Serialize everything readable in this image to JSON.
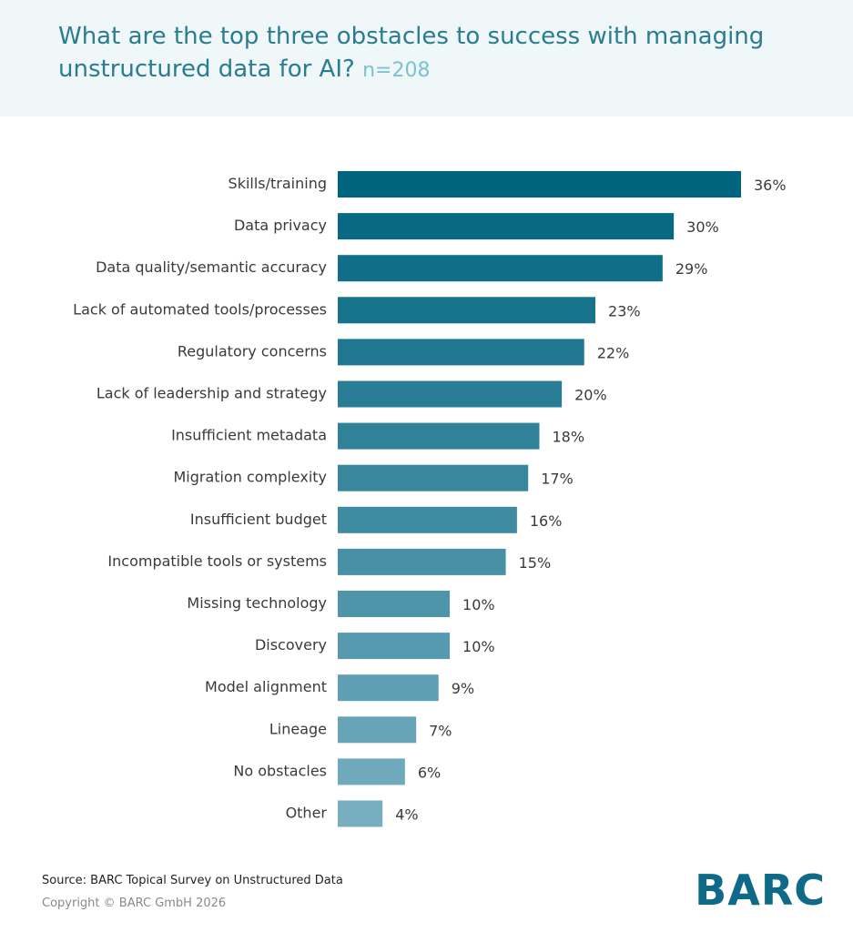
{
  "header": {
    "title": "What are the top three obstacles to success with managing unstructured data for AI?",
    "sample": "n=208"
  },
  "footer": {
    "source": "Source: BARC Topical Survey on Unstructured Data",
    "copyright": "Copyright © BARC GmbH 2026",
    "logo": "BARC"
  },
  "chart_data": {
    "type": "bar",
    "orientation": "horizontal",
    "title": "What are the top three obstacles to success with managing unstructured data for AI?",
    "categories": [
      "Skills/training",
      "Data privacy",
      "Data quality/semantic accuracy",
      "Lack of automated tools/processes",
      "Regulatory concerns",
      "Lack of leadership and strategy",
      "Insufficient metadata",
      "Migration complexity",
      "Insufficient budget",
      "Incompatible tools or systems",
      "Missing technology",
      "Discovery",
      "Model alignment",
      "Lineage",
      "No obstacles",
      "Other"
    ],
    "values": [
      36,
      30,
      29,
      23,
      22,
      20,
      18,
      17,
      16,
      15,
      10,
      10,
      9,
      7,
      6,
      4
    ],
    "value_labels": [
      "36%",
      "30%",
      "29%",
      "23%",
      "22%",
      "20%",
      "18%",
      "17%",
      "16%",
      "15%",
      "10%",
      "10%",
      "9%",
      "7%",
      "6%",
      "4%"
    ],
    "unit": "%",
    "xlim": [
      0,
      36
    ],
    "grid": false,
    "colors": {
      "darkest": "#00647f",
      "lightest": "#77aec0"
    }
  }
}
